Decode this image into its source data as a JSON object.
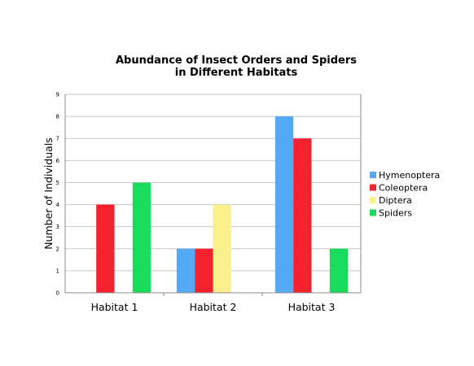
{
  "chart_data": {
    "type": "bar",
    "title": [
      "Abundance of Insect Orders and Spiders",
      "in Different Habitats"
    ],
    "xlabel": "",
    "ylabel": "Number of Individuals",
    "ylim": [
      0,
      9
    ],
    "yticks": [
      "0",
      "1",
      "2",
      "3",
      "4",
      "5",
      "6",
      "7",
      "8",
      "9"
    ],
    "grid": true,
    "legend_position": "right",
    "categories": [
      "Habitat 1",
      "Habitat 2",
      "Habitat 3"
    ],
    "series": [
      {
        "name": "Hymenoptera",
        "color": "#55AAF5",
        "values": [
          0,
          2,
          8
        ]
      },
      {
        "name": "Coleoptera",
        "color": "#F4212E",
        "values": [
          4,
          2,
          7
        ]
      },
      {
        "name": "Diptera",
        "color": "#FBF08C",
        "values": [
          0,
          4,
          0
        ]
      },
      {
        "name": "Spiders",
        "color": "#1ADC5C",
        "values": [
          5,
          0,
          2
        ]
      }
    ]
  }
}
